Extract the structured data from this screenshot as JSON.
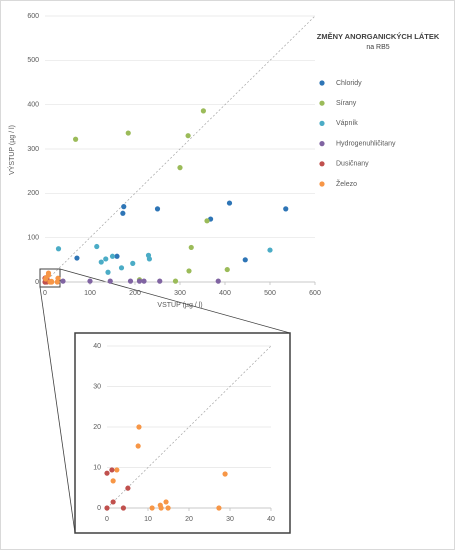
{
  "chart_data": [
    {
      "type": "scatter",
      "title": "ZMĚNY ANORGANICKÝCH LÁTEK",
      "subtitle": "na RB5",
      "x_label": "VSTUP (µg / l)",
      "y_label": "VÝSTUP (µg / l)",
      "xlim": [
        0,
        600
      ],
      "xticks": [
        0,
        100,
        200,
        300,
        400,
        500,
        600
      ],
      "ylim": [
        0,
        600
      ],
      "yticks": [
        0,
        100,
        200,
        300,
        400,
        500,
        600
      ],
      "grid": true,
      "series": [
        {
          "name": "Chloridy",
          "color": "#2e75b6",
          "x": [
            71,
            175,
            173,
            250,
            410,
            368,
            445,
            535,
            160
          ],
          "y": [
            54,
            170,
            155,
            165,
            178,
            142,
            50,
            165,
            58
          ]
        },
        {
          "name": "Sírany",
          "color": "#9bbb59",
          "x": [
            68,
            185,
            318,
            352,
            300,
            325,
            360,
            405,
            320,
            290,
            210
          ],
          "y": [
            322,
            336,
            330,
            386,
            258,
            78,
            138,
            28,
            25,
            2,
            5
          ]
        },
        {
          "name": "Vápník",
          "color": "#4bacc6",
          "x": [
            30,
            115,
            135,
            140,
            150,
            170,
            195,
            230,
            232,
            500,
            125
          ],
          "y": [
            75,
            80,
            52,
            22,
            58,
            32,
            42,
            60,
            52,
            72,
            45
          ]
        },
        {
          "name": "Hydrogenuhličitany",
          "color": "#8064a2",
          "x": [
            40,
            100,
            145,
            190,
            210,
            220,
            255,
            385
          ],
          "y": [
            2,
            2,
            2,
            2,
            2,
            2,
            2,
            2
          ]
        },
        {
          "name": "Dusičnany",
          "color": "#c0504d",
          "x": [
            0,
            1.2,
            1.5,
            5.1,
            0,
            4
          ],
          "y": [
            8.6,
            9.4,
            1.5,
            4.9,
            0,
            0
          ]
        },
        {
          "name": "Železo",
          "color": "#f79646",
          "x": [
            7.8,
            7.6,
            2.4,
            1.5,
            28.8,
            14.4,
            13.2,
            11,
            14.9,
            27.3,
            13
          ],
          "y": [
            20,
            15.3,
            9.4,
            6.7,
            8.4,
            1.5,
            0,
            0,
            0,
            0,
            0.7
          ]
        }
      ]
    },
    {
      "type": "scatter",
      "xlim": [
        0,
        40
      ],
      "xticks": [
        0,
        10,
        20,
        30,
        40
      ],
      "ylim": [
        0,
        40
      ],
      "yticks": [
        0,
        10,
        20,
        30,
        40
      ],
      "grid": true,
      "series": [
        {
          "color": "#c0504d",
          "x": [
            0,
            1.2,
            1.5,
            5.1,
            0,
            4
          ],
          "y": [
            8.6,
            9.4,
            1.5,
            4.9,
            0,
            0
          ]
        },
        {
          "color": "#f79646",
          "x": [
            7.8,
            7.6,
            2.4,
            1.5,
            28.8,
            14.4,
            13.2,
            11,
            14.9,
            27.3,
            13
          ],
          "y": [
            20,
            15.3,
            9.4,
            6.7,
            8.4,
            1.5,
            0,
            0,
            0,
            0,
            0.7
          ]
        }
      ]
    }
  ]
}
